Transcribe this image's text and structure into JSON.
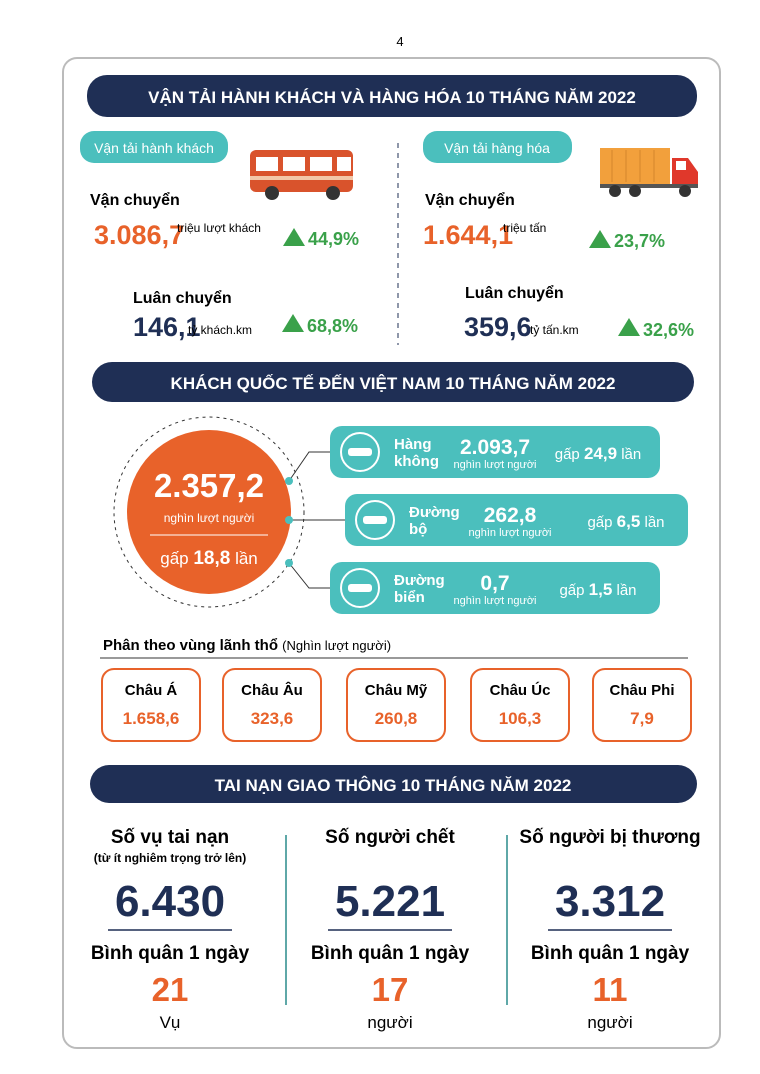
{
  "page_number": "4",
  "transport": {
    "title": "VẬN TẢI HÀNH KHÁCH VÀ HÀNG HÓA 10 THÁNG NĂM 2022",
    "passenger": {
      "label": "Vận tải hành khách",
      "carried": {
        "heading": "Vận chuyển",
        "value": "3.086,7",
        "unit": "triệu lượt khách",
        "change": "44,9%"
      },
      "rotated": {
        "heading": "Luân chuyển",
        "value": "146,1",
        "unit": "tỷ khách.km",
        "change": "68,8%"
      }
    },
    "freight": {
      "label": "Vận tải hàng hóa",
      "carried": {
        "heading": "Vận chuyển",
        "value": "1.644,1",
        "unit": "triệu tấn",
        "change": "23,7%"
      },
      "rotated": {
        "heading": "Luân chuyển",
        "value": "359,6",
        "unit": "tỷ tấn.km",
        "change": "32,6%"
      }
    }
  },
  "visitors": {
    "title": "KHÁCH QUỐC TẾ ĐẾN VIỆT NAM 10 THÁNG NĂM 2022",
    "total": {
      "value": "2.357,2",
      "unit": "nghìn lượt người",
      "ratio_prefix": "gấp",
      "ratio": "18,8",
      "ratio_suffix": "lần"
    },
    "modes": [
      {
        "name_line1": "Hàng",
        "name_line2": "không",
        "value": "2.093,7",
        "unit": "nghìn lượt người",
        "ratio_prefix": "gấp",
        "ratio": "24,9",
        "ratio_suffix": "lần"
      },
      {
        "name_line1": "Đường",
        "name_line2": "bộ",
        "value": "262,8",
        "unit": "nghìn lượt người",
        "ratio_prefix": "gấp",
        "ratio": "6,5",
        "ratio_suffix": "lần"
      },
      {
        "name_line1": "Đường",
        "name_line2": "biển",
        "value": "0,7",
        "unit": "nghìn lượt người",
        "ratio_prefix": "gấp",
        "ratio": "1,5",
        "ratio_suffix": "lần"
      }
    ],
    "regions_heading": "Phân theo vùng lãnh thổ",
    "regions_unit": "(Nghìn lượt người)",
    "regions": [
      {
        "name": "Châu Á",
        "value": "1.658,6"
      },
      {
        "name": "Châu Âu",
        "value": "323,6"
      },
      {
        "name": "Châu Mỹ",
        "value": "260,8"
      },
      {
        "name": "Châu Úc",
        "value": "106,3"
      },
      {
        "name": "Châu Phi",
        "value": "7,9"
      }
    ]
  },
  "accidents": {
    "title": "TAI NẠN GIAO THÔNG 10 THÁNG NĂM 2022",
    "columns": [
      {
        "heading": "Số vụ tai nạn",
        "subheading": "(từ ít nghiêm trọng trở lên)",
        "value": "6.430",
        "avg_label": "Bình quân 1 ngày",
        "avg_value": "21",
        "avg_unit": "Vụ"
      },
      {
        "heading": "Số người chết",
        "value": "5.221",
        "avg_label": "Bình quân 1 ngày",
        "avg_value": "17",
        "avg_unit": "người"
      },
      {
        "heading": "Số người bị thương",
        "value": "3.312",
        "avg_label": "Bình quân 1 ngày",
        "avg_value": "11",
        "avg_unit": "người"
      }
    ]
  }
}
